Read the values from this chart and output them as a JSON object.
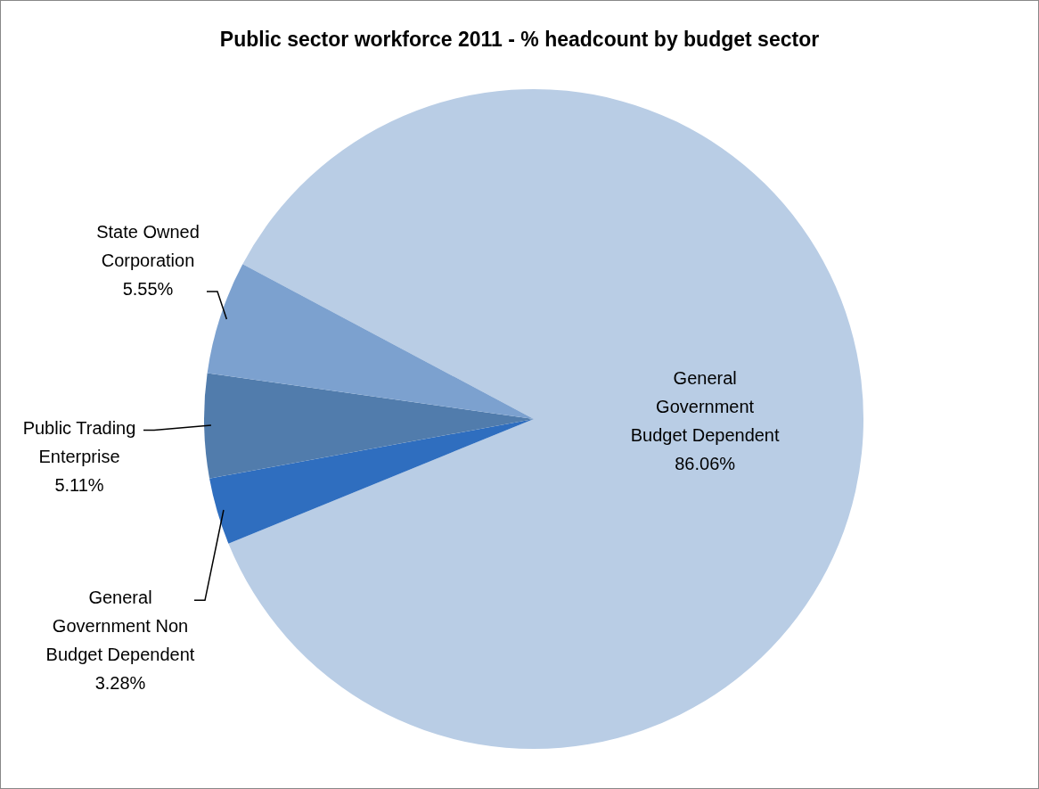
{
  "chart_data": {
    "type": "pie",
    "title": "Public sector workforce 2011 - % headcount by budget sector",
    "categories": [
      "General Government Budget Dependent",
      "General Government Non Budget Dependent",
      "Public Trading Enterprise",
      "State Owned Corporation"
    ],
    "values": [
      86.06,
      3.28,
      5.11,
      5.55
    ],
    "value_labels": [
      "86.06%",
      "3.28%",
      "5.11%",
      "5.55%"
    ],
    "colors": [
      "#b9cde5",
      "#2f6ebf",
      "#517cac",
      "#7ca1cf"
    ],
    "legend": false
  }
}
